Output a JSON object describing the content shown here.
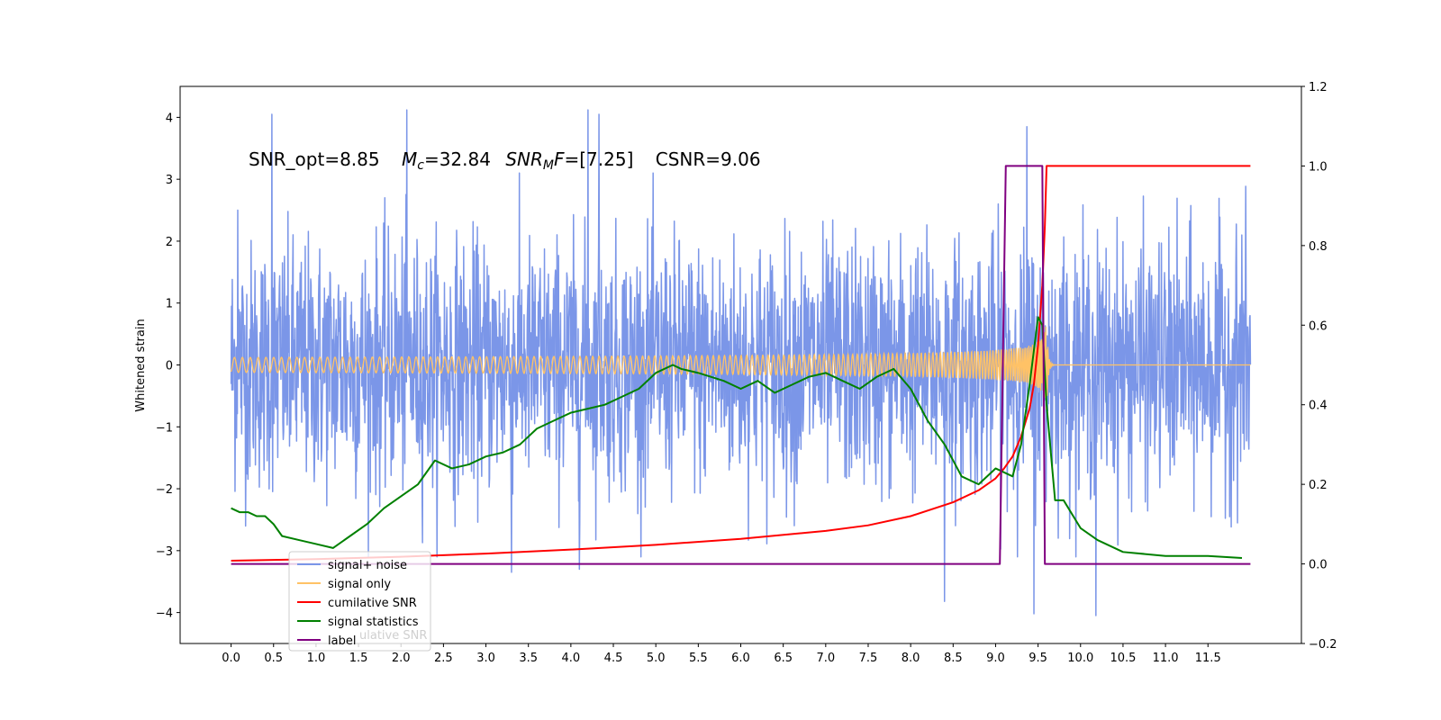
{
  "chart_data": {
    "type": "line",
    "xlim": [
      -0.6,
      12.6
    ],
    "ylim": [
      -4.5,
      4.5
    ],
    "y2lim": [
      -0.2,
      1.2
    ],
    "x_ticks": [
      "0.0",
      "0.5",
      "1.0",
      "1.5",
      "2.0",
      "2.5",
      "3.0",
      "3.5",
      "4.0",
      "4.5",
      "5.0",
      "5.5",
      "6.0",
      "6.5",
      "7.0",
      "7.5",
      "8.0",
      "8.5",
      "9.0",
      "9.5",
      "10.0",
      "10.5",
      "11.0",
      "11.5"
    ],
    "y_ticks": [
      "4",
      "3",
      "2",
      "1",
      "0",
      "−1",
      "−2",
      "−3",
      "−4"
    ],
    "y2_ticks": [
      "1.2",
      "1.0",
      "0.8",
      "0.6",
      "0.4",
      "0.2",
      "0.0",
      "−0.2"
    ],
    "ylabel": "Whitened strain",
    "annotation": {
      "snr_opt": "SNR_opt=8.85",
      "mc_sym": "M",
      "mc_sub": "c",
      "mc_val": "=32.84",
      "mf_sym": "SNR",
      "mf_sub": "M",
      "mf_f": "F",
      "mf_val": "=[7.25]",
      "csnr": "CSNR=9.06"
    },
    "legend": {
      "placement": "lower-left",
      "entries": [
        {
          "label": "signal+ noise",
          "color": "#7b96e8"
        },
        {
          "label": "signal only",
          "color": "#ffc266"
        },
        {
          "label": "cumilative SNR",
          "color": "#ff0000"
        },
        {
          "label": "signal statistics",
          "color": "#008000"
        },
        {
          "label": "label",
          "color": "#800080"
        }
      ],
      "ghost_text": "ulative SNR"
    },
    "series": [
      {
        "name": "signal+ noise",
        "color": "#7b96e8",
        "kind": "noise",
        "x_range": [
          0.0,
          12.0
        ],
        "amplitude_approx": 1.6,
        "spikes": [
          {
            "x": 0.48,
            "y": 4.05
          },
          {
            "x": 2.07,
            "y": 4.12
          },
          {
            "x": 4.2,
            "y": 4.12
          },
          {
            "x": 4.33,
            "y": 4.05
          },
          {
            "x": 9.37,
            "y": 3.85
          },
          {
            "x": 9.45,
            "y": -4.02
          },
          {
            "x": 10.18,
            "y": -4.05
          },
          {
            "x": 8.4,
            "y": -3.82
          },
          {
            "x": 3.3,
            "y": -3.35
          },
          {
            "x": 4.1,
            "y": -3.3
          },
          {
            "x": 0.08,
            "y": 2.5
          },
          {
            "x": 11.9,
            "y": 2.1
          }
        ]
      },
      {
        "name": "signal only",
        "color": "#ffc266",
        "kind": "chirp",
        "x_range": [
          0.0,
          12.0
        ],
        "merger_x": 9.6,
        "peak_amplitude": 0.85
      },
      {
        "name": "cumilative SNR",
        "color": "#ff0000",
        "axis": "y2",
        "x": [
          0.0,
          1.0,
          2.0,
          3.0,
          4.0,
          5.0,
          6.0,
          7.0,
          7.5,
          8.0,
          8.5,
          8.8,
          9.0,
          9.1,
          9.2,
          9.3,
          9.4,
          9.45,
          9.5,
          9.55,
          9.58,
          9.6,
          10.0,
          11.0,
          12.0
        ],
        "y": [
          0.008,
          0.012,
          0.018,
          0.026,
          0.036,
          0.048,
          0.063,
          0.083,
          0.097,
          0.12,
          0.155,
          0.185,
          0.215,
          0.24,
          0.27,
          0.32,
          0.39,
          0.45,
          0.55,
          0.7,
          0.85,
          1.0,
          1.0,
          1.0,
          1.0
        ]
      },
      {
        "name": "signal statistics",
        "color": "#008000",
        "axis": "y2",
        "x": [
          0.0,
          0.1,
          0.2,
          0.3,
          0.4,
          0.5,
          0.6,
          0.8,
          1.0,
          1.2,
          1.4,
          1.6,
          1.8,
          2.0,
          2.2,
          2.4,
          2.6,
          2.8,
          3.0,
          3.2,
          3.4,
          3.6,
          3.8,
          4.0,
          4.2,
          4.4,
          4.6,
          4.8,
          5.0,
          5.2,
          5.3,
          5.5,
          5.8,
          6.0,
          6.2,
          6.4,
          6.6,
          6.8,
          7.0,
          7.2,
          7.4,
          7.6,
          7.8,
          8.0,
          8.2,
          8.4,
          8.6,
          8.8,
          9.0,
          9.2,
          9.3,
          9.4,
          9.5,
          9.55,
          9.6,
          9.7,
          9.8,
          10.0,
          10.2,
          10.5,
          11.0,
          11.5,
          11.9
        ],
        "y": [
          0.14,
          0.13,
          0.13,
          0.12,
          0.12,
          0.1,
          0.07,
          0.06,
          0.05,
          0.04,
          0.07,
          0.1,
          0.14,
          0.17,
          0.2,
          0.26,
          0.24,
          0.25,
          0.27,
          0.28,
          0.3,
          0.34,
          0.36,
          0.38,
          0.39,
          0.4,
          0.42,
          0.44,
          0.48,
          0.5,
          0.49,
          0.48,
          0.46,
          0.44,
          0.46,
          0.43,
          0.45,
          0.47,
          0.48,
          0.46,
          0.44,
          0.47,
          0.49,
          0.44,
          0.36,
          0.3,
          0.22,
          0.2,
          0.24,
          0.22,
          0.3,
          0.45,
          0.62,
          0.6,
          0.4,
          0.16,
          0.16,
          0.09,
          0.06,
          0.03,
          0.02,
          0.02,
          0.015
        ]
      },
      {
        "name": "label",
        "color": "#800080",
        "axis": "y2",
        "x": [
          0.0,
          9.05,
          9.12,
          9.55,
          9.58,
          9.62,
          12.0
        ],
        "y": [
          0.0,
          0.0,
          1.0,
          1.0,
          0.0,
          0.0,
          0.0
        ]
      }
    ]
  }
}
